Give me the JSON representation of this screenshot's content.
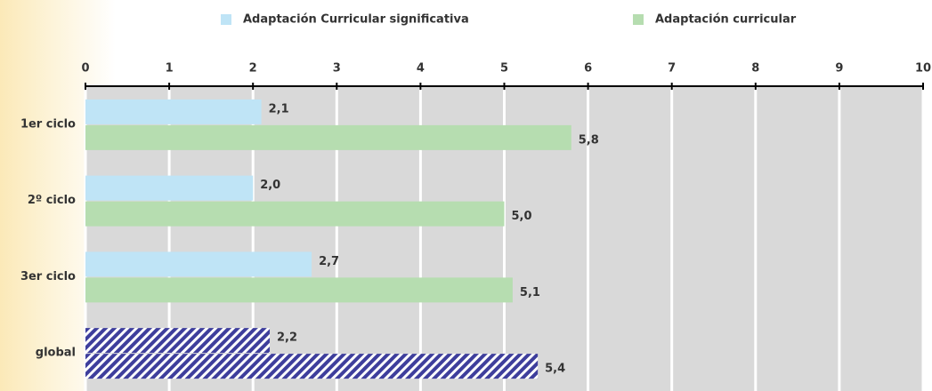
{
  "chart_data": {
    "type": "hbar",
    "categories": [
      "1er ciclo",
      "2º ciclo",
      "3er ciclo",
      "global"
    ],
    "series": [
      {
        "name": "Adaptación Curricular significativa",
        "color": "#bfe4f6",
        "values": [
          2.1,
          2.0,
          2.7,
          2.2
        ],
        "value_labels": [
          "2,1",
          "2,0",
          "2,7",
          "2,2"
        ]
      },
      {
        "name": "Adaptación curricular",
        "color": "#b6ddb0",
        "values": [
          5.8,
          5.0,
          5.1,
          5.4
        ],
        "value_labels": [
          "5,8",
          "5,0",
          "5,1",
          "5,4"
        ]
      }
    ],
    "hatched": [
      false,
      false,
      false,
      true
    ],
    "hatch_color": "#3e3e9c",
    "xlim": [
      0,
      10
    ],
    "xticks": [
      0,
      1,
      2,
      3,
      4,
      5,
      6,
      7,
      8,
      9,
      10
    ],
    "grid": true,
    "legend": "top"
  }
}
